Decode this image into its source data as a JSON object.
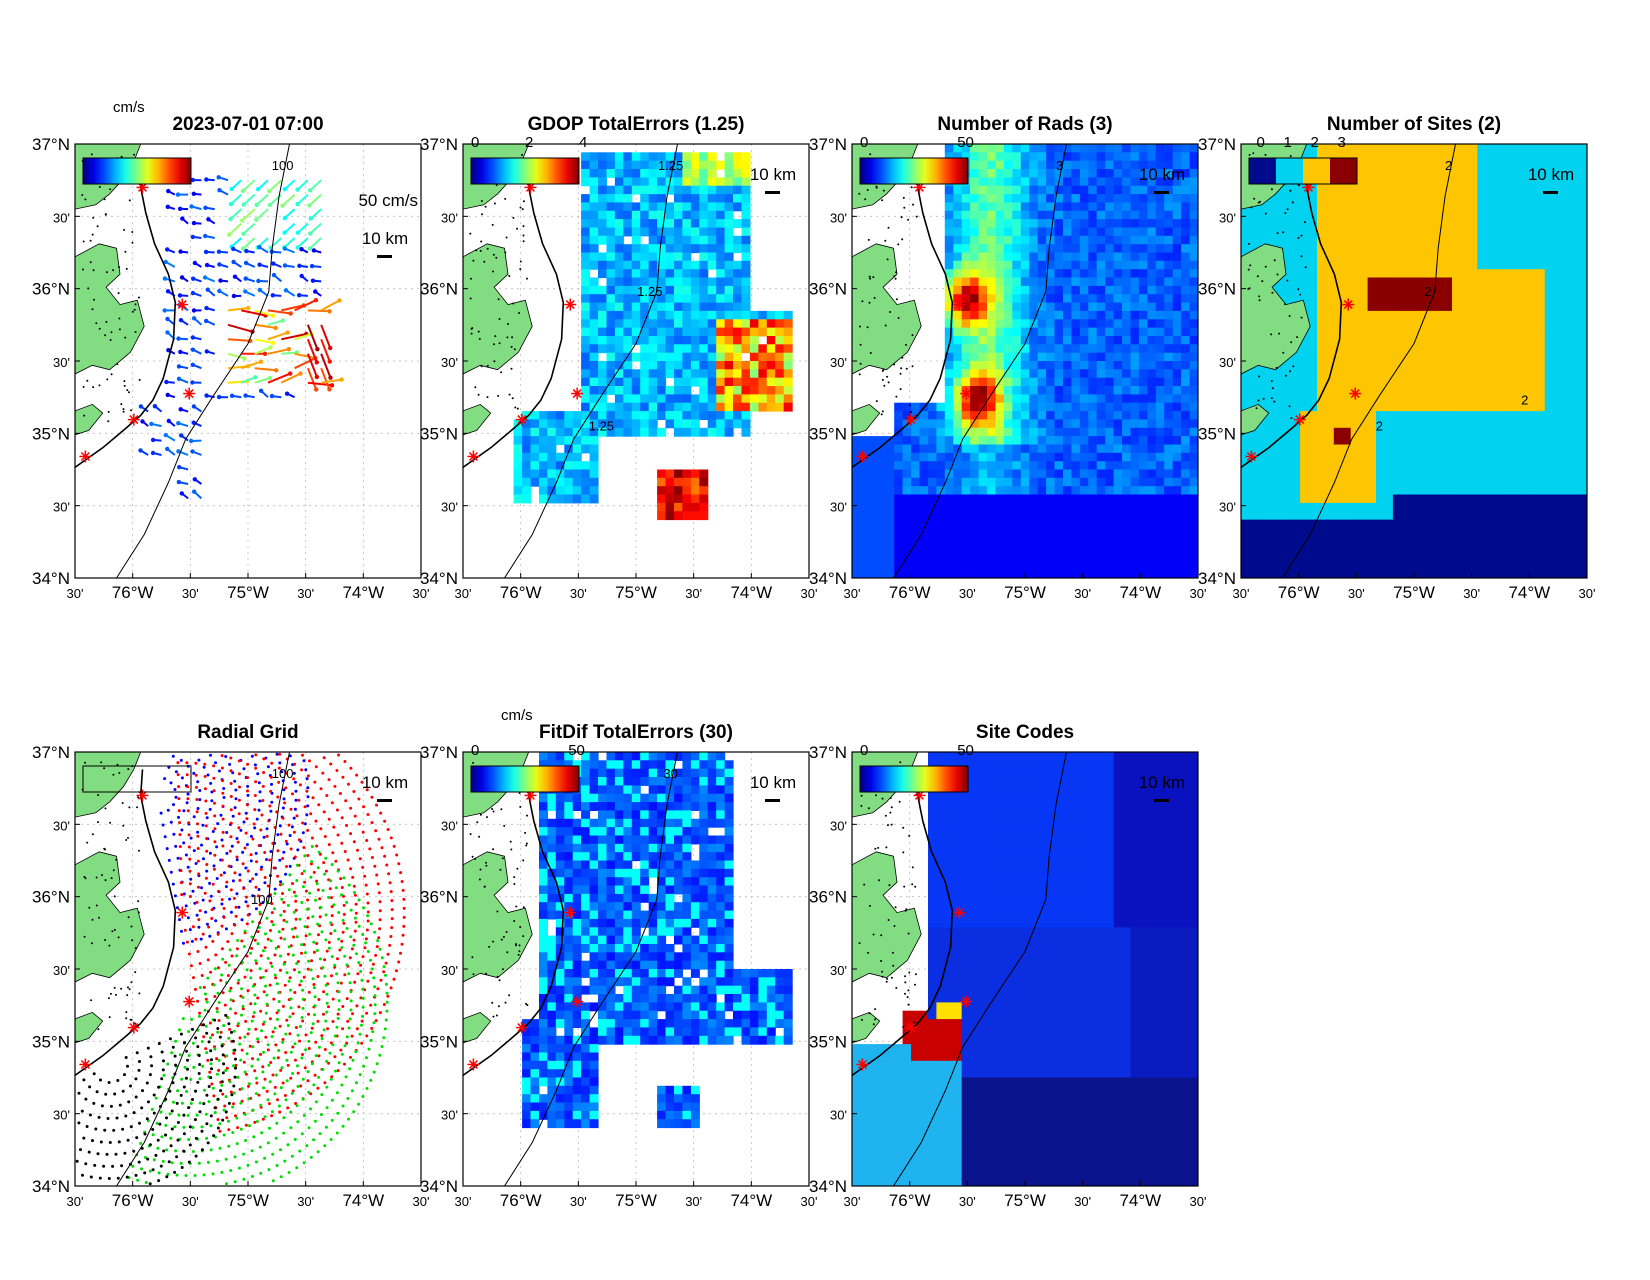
{
  "figure": {
    "lat_labels": [
      "37°N",
      "30'",
      "36°N",
      "30'",
      "35°N",
      "30'",
      "34°N"
    ],
    "lon_labels": [
      "30'",
      "76°W",
      "30'",
      "75°W",
      "30'",
      "74°W",
      "30'"
    ],
    "scale_label": "10 km",
    "colors": {
      "land": "#82dd82",
      "frame": "#000000",
      "site": "#ff0000",
      "grid": "#bbbbbb"
    }
  },
  "panels": [
    {
      "id": "total-vectors",
      "title": "2023-07-01 07:00",
      "type": "vectors",
      "colormap": "jet",
      "cb_unit": "cm/s",
      "cb_ticks": [],
      "ref_label": "50 cm/s",
      "contour_labels": [
        "100"
      ]
    },
    {
      "id": "gdop-errors",
      "title": "GDOP TotalErrors (1.25)",
      "type": "field",
      "colormap": "jet",
      "cb_unit": "",
      "cb_ticks": [
        "0",
        "2",
        "4"
      ],
      "contour_labels": [
        "1.25",
        "1.25",
        "1.25"
      ]
    },
    {
      "id": "num-rads",
      "title": "Number of Rads (3)",
      "type": "field",
      "colormap": "jet",
      "cb_unit": "",
      "cb_ticks": [
        "0",
        "50"
      ],
      "contour_labels": [
        "3"
      ]
    },
    {
      "id": "num-sites",
      "title": "Number of Sites (2)",
      "type": "field",
      "colormap": "sites",
      "cb_unit": "",
      "cb_ticks": [
        "0",
        "1",
        "2",
        "3"
      ],
      "contour_labels": [
        "2",
        "2",
        "2",
        "2"
      ]
    },
    {
      "id": "radial-grid",
      "title": "Radial Grid",
      "type": "radials",
      "colormap": "none",
      "cb_unit": "",
      "cb_ticks": [],
      "contour_labels": [
        "100",
        "100"
      ]
    },
    {
      "id": "fitdif-errors",
      "title": "FitDif TotalErrors (30)",
      "type": "field",
      "colormap": "jet",
      "cb_unit": "cm/s",
      "cb_ticks": [
        "0",
        "50"
      ],
      "contour_labels": [
        "30"
      ]
    },
    {
      "id": "site-codes",
      "title": "Site Codes",
      "type": "field",
      "colormap": "jet",
      "cb_unit": "",
      "cb_ticks": [
        "0",
        "50"
      ],
      "contour_labels": []
    }
  ]
}
